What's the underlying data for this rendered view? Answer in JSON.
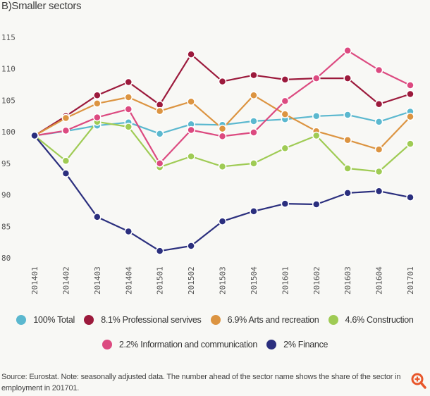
{
  "title": "B)Smaller sectors",
  "source_note": "Source: Eurostat. Note: seasonally adjusted data. The number ahead of the sector name shows the share of the sector in employment in 201701.",
  "zoom_icon": "zoom-in-magnifier-icon",
  "chart_data": {
    "type": "line",
    "title": "B)Smaller sectors",
    "xlabel": "",
    "ylabel": "",
    "ylim": [
      80,
      115
    ],
    "yticks": [
      80,
      85,
      90,
      95,
      100,
      105,
      110,
      115
    ],
    "grid": false,
    "legend_position": "bottom",
    "categories": [
      "201401",
      "201402",
      "201403",
      "201404",
      "201501",
      "201502",
      "201503",
      "201504",
      "201601",
      "201602",
      "201603",
      "201604",
      "201701"
    ],
    "series": [
      {
        "name": "100% Total",
        "color": "#5bb8cf",
        "values": [
          99.4,
          100.1,
          101.0,
          101.5,
          99.7,
          101.2,
          101.1,
          101.7,
          102.0,
          102.5,
          102.7,
          101.6,
          103.2
        ]
      },
      {
        "name": "8.1% Professional servives",
        "color": "#9c1a3c",
        "values": [
          99.4,
          102.5,
          105.8,
          107.9,
          104.3,
          112.3,
          108.0,
          109.0,
          108.3,
          108.5,
          108.5,
          104.4,
          106.0
        ]
      },
      {
        "name": "6.9% Arts and recreation",
        "color": "#dc9441",
        "values": [
          99.4,
          102.2,
          104.5,
          105.5,
          103.3,
          104.8,
          100.5,
          105.8,
          102.8,
          100.1,
          98.7,
          97.2,
          102.4
        ]
      },
      {
        "name": "4.6% Construction",
        "color": "#9fcb54",
        "values": [
          99.4,
          95.4,
          101.6,
          100.8,
          94.4,
          96.1,
          94.5,
          95.0,
          97.4,
          99.4,
          94.2,
          93.7,
          98.1
        ]
      },
      {
        "name": "2.2% Information and communication",
        "color": "#dc4a80",
        "values": [
          99.4,
          100.2,
          102.3,
          103.6,
          95.0,
          100.3,
          99.3,
          99.9,
          104.9,
          108.5,
          112.9,
          109.8,
          107.4
        ]
      },
      {
        "name": "2% Finance",
        "color": "#2b2f7e",
        "values": [
          99.4,
          93.4,
          86.5,
          84.2,
          81.1,
          81.9,
          85.8,
          87.4,
          88.6,
          88.5,
          90.3,
          90.6,
          89.6
        ]
      }
    ]
  }
}
